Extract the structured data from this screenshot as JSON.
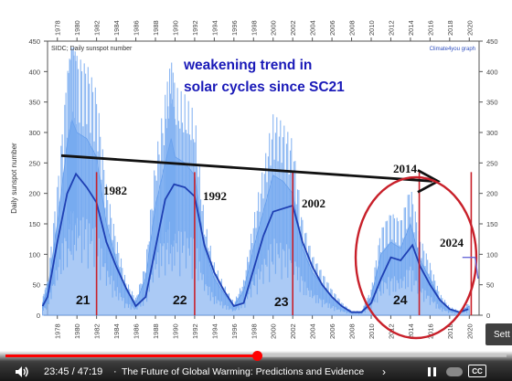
{
  "chart": {
    "source_label": "SIDC; Daily sunspot number",
    "brand_label": "Climate4you graph",
    "headline_line1": "weakening trend in",
    "headline_line2": "solar cycles since SC21",
    "ylabel": "Daily sunspot number",
    "y_ticks": [
      "450",
      "400",
      "350",
      "300",
      "250",
      "200",
      "150",
      "100",
      "50",
      "0"
    ],
    "x_ticks_bottom": [
      "1978",
      "1980",
      "1982",
      "1984",
      "1986",
      "1988",
      "1990",
      "1992",
      "1994",
      "1996",
      "1998",
      "2000",
      "2002",
      "2004",
      "2006",
      "2008",
      "2010",
      "2012",
      "2014",
      "2016",
      "2018",
      "2020"
    ],
    "x_ticks_top": [
      "1978",
      "1980",
      "1982",
      "1984",
      "1986",
      "1988",
      "1990",
      "1992",
      "1994",
      "1996",
      "1998",
      "2000",
      "2002",
      "2004",
      "2006",
      "2008",
      "2010",
      "2012",
      "2014",
      "2016",
      "2018",
      "2020"
    ],
    "cycle_labels": [
      "21",
      "22",
      "23",
      "24"
    ],
    "max_year_labels": [
      "1982",
      "1992",
      "2002",
      "2014",
      "2024"
    ]
  },
  "chart_data": {
    "type": "area",
    "title": "",
    "ylabel": "Daily sunspot number",
    "xlim": [
      1977,
      2021
    ],
    "ylim": [
      0,
      450
    ],
    "grid": false,
    "series": [
      {
        "name": "Daily sunspot number",
        "x": [
          1976.5,
          1977,
          1978,
          1979,
          1979.5,
          1980,
          1981,
          1982,
          1983,
          1984,
          1985,
          1986,
          1987,
          1988,
          1989,
          1989.6,
          1990,
          1991,
          1992,
          1993,
          1994,
          1995,
          1996,
          1997,
          1998,
          1999,
          2000,
          2001,
          2002,
          2003,
          2004,
          2005,
          2006,
          2007,
          2008,
          2009,
          2010,
          2011,
          2012,
          2013,
          2014,
          2015,
          2016,
          2017,
          2018,
          2019,
          2020
        ],
        "y": [
          20,
          40,
          150,
          280,
          320,
          300,
          290,
          260,
          150,
          90,
          40,
          20,
          60,
          180,
          250,
          290,
          260,
          250,
          230,
          110,
          60,
          35,
          15,
          40,
          110,
          170,
          230,
          220,
          200,
          110,
          70,
          50,
          30,
          15,
          5,
          5,
          30,
          100,
          120,
          110,
          150,
          90,
          60,
          25,
          10,
          5,
          15
        ]
      },
      {
        "name": "Running mean",
        "x": [
          1976.5,
          1977,
          1978,
          1979,
          1979.9,
          1981,
          1982,
          1983,
          1984,
          1985,
          1986,
          1987,
          1988,
          1989,
          1989.9,
          1991,
          1992,
          1993,
          1994,
          1995,
          1996,
          1997,
          1998,
          1999,
          2000,
          2001,
          2002,
          2003,
          2004,
          2005,
          2006,
          2007,
          2008,
          2009,
          2010,
          2011,
          2012,
          2013,
          2014.2,
          2015,
          2016,
          2017,
          2018,
          2019,
          2019.9
        ],
        "y": [
          15,
          30,
          120,
          200,
          232,
          210,
          185,
          120,
          80,
          45,
          15,
          30,
          110,
          190,
          215,
          210,
          195,
          115,
          70,
          40,
          15,
          20,
          75,
          130,
          170,
          175,
          180,
          120,
          80,
          50,
          30,
          15,
          5,
          5,
          20,
          60,
          95,
          90,
          115,
          80,
          50,
          25,
          10,
          5,
          10
        ]
      }
    ],
    "cycle_markers_x": [
      1982,
      1992,
      2002,
      2014.9,
      2020.2
    ],
    "trend_arrow": {
      "from": [
        1978.4,
        262
      ],
      "to": [
        2016.8,
        220
      ]
    },
    "annotations": [
      "1982",
      "1992",
      "2002",
      "2014",
      "2024",
      "21",
      "22",
      "23",
      "24"
    ]
  },
  "player": {
    "time_current": "23:45",
    "time_total": "47:19",
    "time_sep": "/",
    "chapter_sep": "·",
    "chapter_title": "The Future of Global Warming: Predictions and Evidence",
    "chapter_chevron": "›",
    "progress_fraction": 0.502,
    "cc_label": "CC",
    "settings_tooltip": "Sett",
    "volume_icon": "volume-icon",
    "pause_icon": "pause-icon",
    "accent_color": "#ff0000"
  }
}
